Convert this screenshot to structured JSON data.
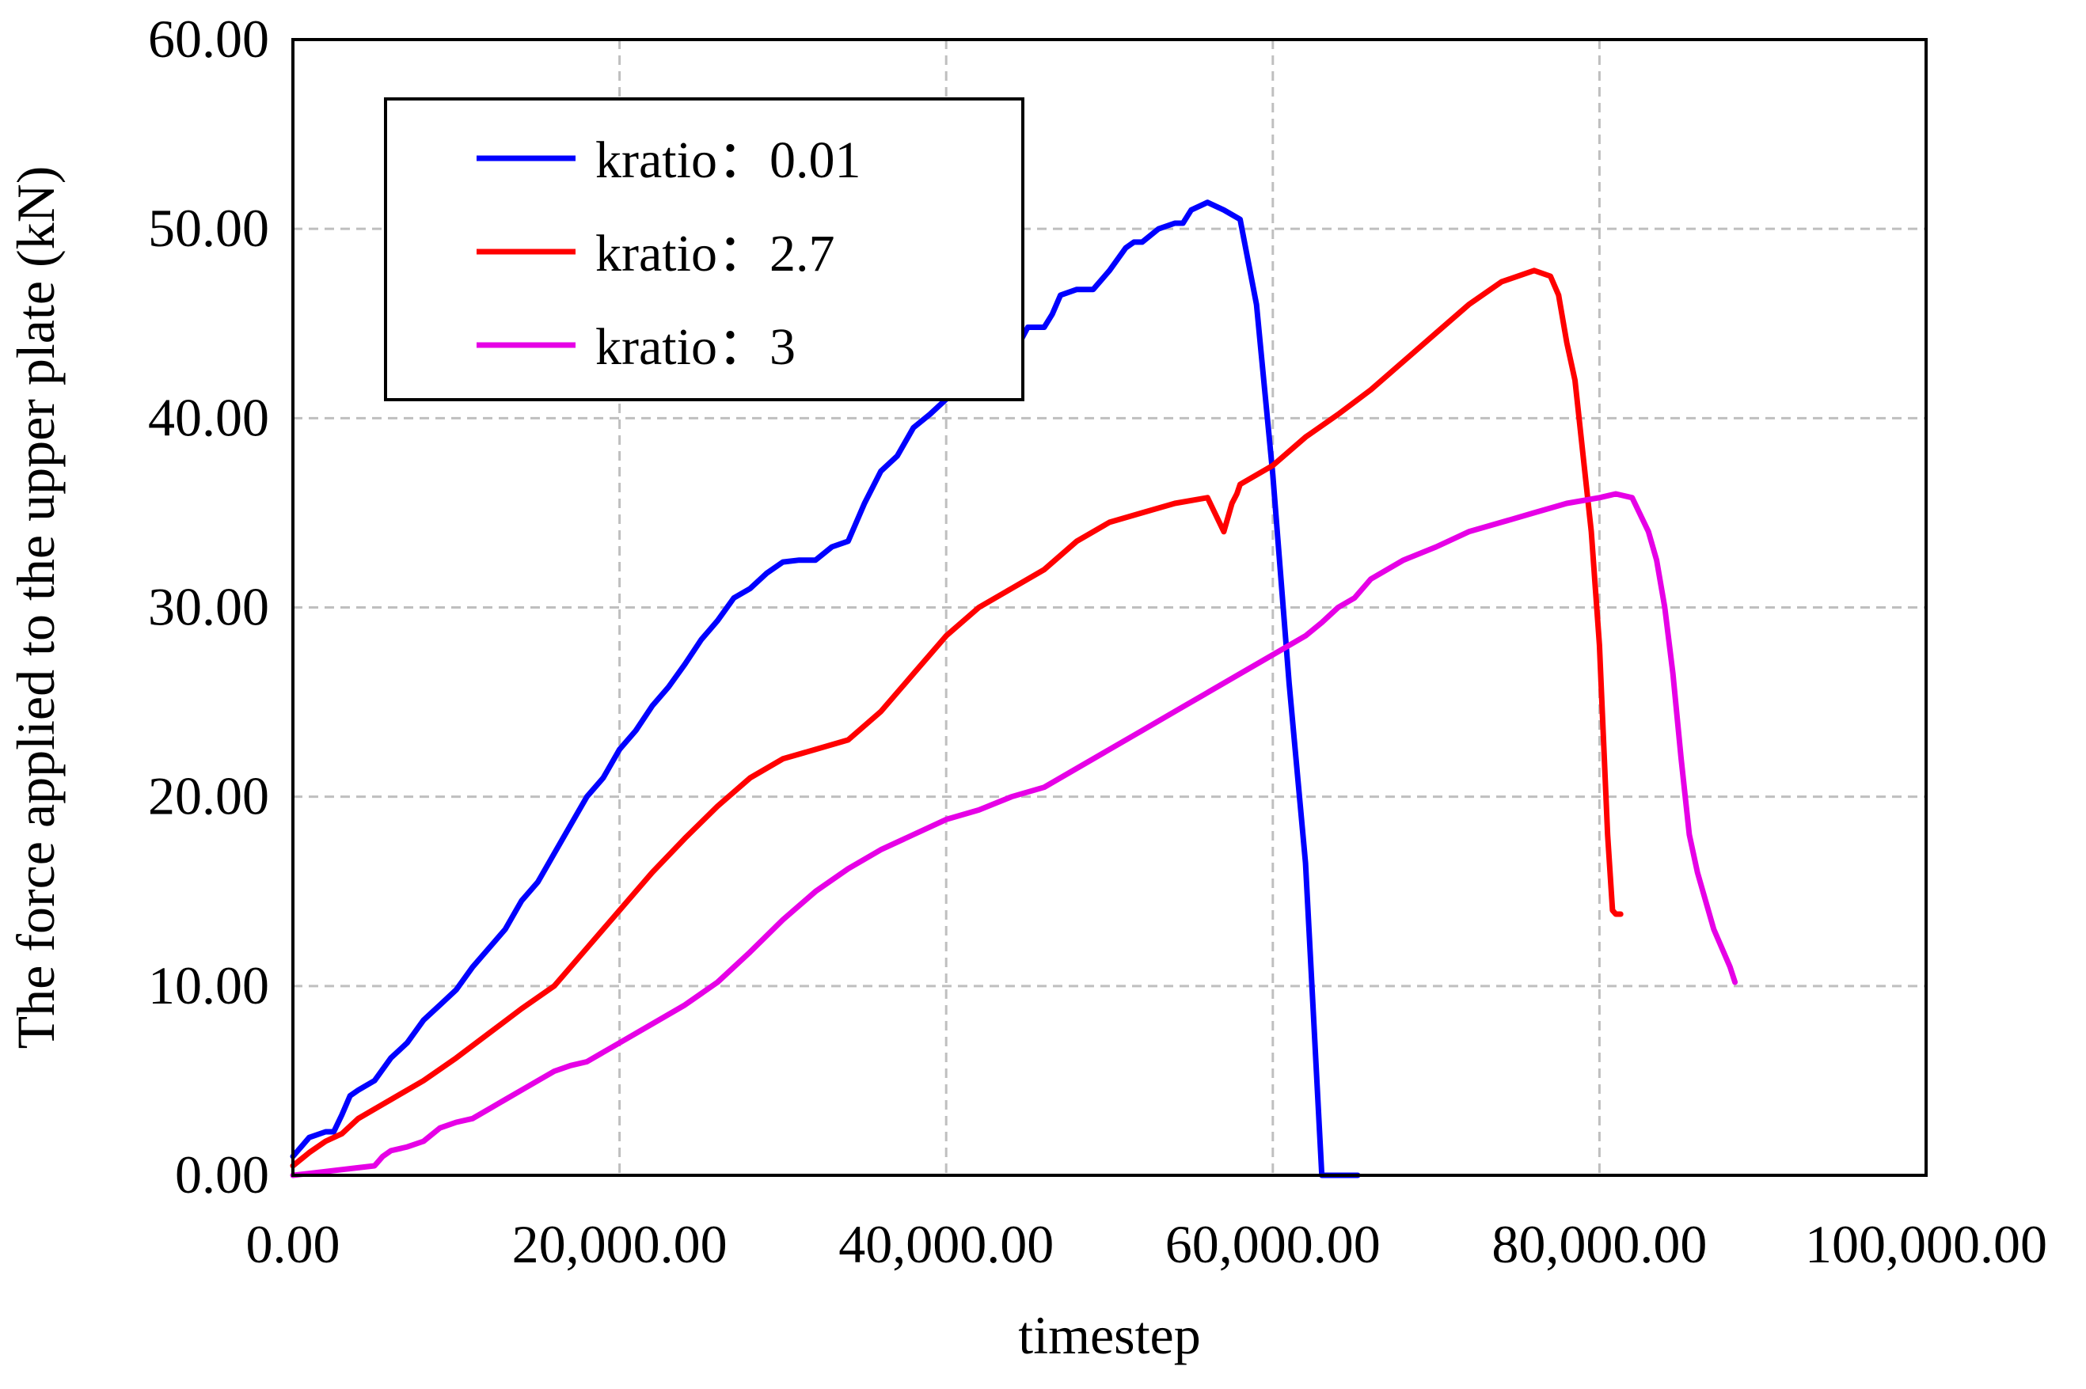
{
  "chart_data": {
    "type": "line",
    "title": "",
    "xlabel": "timestep",
    "ylabel": "The force applied to the upper plate (kN)",
    "xlim": [
      0,
      100000
    ],
    "ylim": [
      0,
      60
    ],
    "xticks": [
      0,
      20000,
      40000,
      60000,
      80000,
      100000
    ],
    "xtick_labels": [
      "0.00",
      "20,000.00",
      "40,000.00",
      "60,000.00",
      "80,000.00",
      "100,000.00"
    ],
    "yticks": [
      0,
      10,
      20,
      30,
      40,
      50,
      60
    ],
    "ytick_labels": [
      "0.00",
      "10.00",
      "20.00",
      "30.00",
      "40.00",
      "50.00",
      "60.00"
    ],
    "grid": true,
    "legend_position": "top-left",
    "series": [
      {
        "name": "kratio：0.01",
        "color": "#0000ff",
        "x": [
          0,
          1000,
          2000,
          2500,
          3000,
          3500,
          4000,
          5000,
          6000,
          7000,
          8000,
          9000,
          10000,
          11000,
          12000,
          13000,
          14000,
          15000,
          16000,
          17000,
          18000,
          19000,
          20000,
          21000,
          22000,
          23000,
          24000,
          25000,
          26000,
          27000,
          28000,
          29000,
          30000,
          31000,
          32000,
          33000,
          34000,
          35000,
          36000,
          37000,
          38000,
          39000,
          40000,
          41000,
          42000,
          43000,
          44000,
          44500,
          45000,
          46000,
          46500,
          47000,
          48000,
          49000,
          50000,
          51000,
          51500,
          52000,
          53000,
          54000,
          54500,
          55000,
          56000,
          57000,
          58000,
          59000,
          60000,
          61000,
          62000,
          62500,
          63000,
          63500,
          64000,
          64300,
          64600,
          64800,
          65000,
          65200
        ],
        "y": [
          1.0,
          2.0,
          2.3,
          2.3,
          3.2,
          4.2,
          4.5,
          5.0,
          6.2,
          7.0,
          8.2,
          9.0,
          9.8,
          11.0,
          12.0,
          13.0,
          14.5,
          15.5,
          17.0,
          18.5,
          20.0,
          21.0,
          22.5,
          23.5,
          24.8,
          25.8,
          27.0,
          28.3,
          29.3,
          30.5,
          31.0,
          31.8,
          32.4,
          32.5,
          32.5,
          33.2,
          33.5,
          35.5,
          37.2,
          38.0,
          39.5,
          40.2,
          41.0,
          42.0,
          42.8,
          43.0,
          43.0,
          44.0,
          44.8,
          44.8,
          45.5,
          46.5,
          46.8,
          46.8,
          47.8,
          49.0,
          49.3,
          49.3,
          50.0,
          50.3,
          50.3,
          51.0,
          51.4,
          51.0,
          50.5,
          46.0,
          37.0,
          26.0,
          16.5,
          0,
          0,
          0,
          0,
          0,
          0,
          0,
          0,
          0
        ]
      },
      {
        "name": "kratio：2.7",
        "color": "#ff0000",
        "x": [
          0,
          1000,
          2000,
          3000,
          4000,
          5000,
          6000,
          8000,
          10000,
          12000,
          14000,
          16000,
          18000,
          20000,
          22000,
          24000,
          26000,
          28000,
          30000,
          32000,
          34000,
          36000,
          38000,
          40000,
          42000,
          44000,
          46000,
          48000,
          50000,
          52000,
          54000,
          56000,
          57000,
          57500,
          57800,
          58000,
          60000,
          62000,
          64000,
          66000,
          68000,
          70000,
          72000,
          74000,
          76000,
          77000,
          77500,
          78000,
          78500,
          79000,
          79500,
          80000,
          80200,
          80500,
          80800,
          81000,
          81300
        ],
        "y": [
          0.5,
          1.2,
          1.8,
          2.2,
          3.0,
          3.5,
          4.0,
          5.0,
          6.2,
          7.5,
          8.8,
          10.0,
          12.0,
          14.0,
          16.0,
          17.8,
          19.5,
          21.0,
          22.0,
          22.5,
          23.0,
          24.5,
          26.5,
          28.5,
          30.0,
          31.0,
          32.0,
          33.5,
          34.5,
          35.0,
          35.5,
          35.8,
          34.0,
          35.5,
          36.0,
          36.5,
          37.5,
          39.0,
          40.2,
          41.5,
          43.0,
          44.5,
          46.0,
          47.2,
          47.8,
          47.5,
          46.5,
          44.0,
          42.0,
          38.0,
          34.0,
          28.0,
          24.0,
          18.0,
          14.0,
          13.8,
          13.8
        ]
      },
      {
        "name": "kratio：3",
        "color": "#e600e6",
        "x": [
          0,
          2000,
          4000,
          5000,
          5500,
          6000,
          7000,
          8000,
          9000,
          10000,
          11000,
          12000,
          13000,
          14000,
          15000,
          16000,
          17000,
          18000,
          19000,
          20000,
          22000,
          24000,
          26000,
          28000,
          30000,
          32000,
          34000,
          36000,
          38000,
          40000,
          42000,
          44000,
          46000,
          48000,
          50000,
          52000,
          54000,
          56000,
          58000,
          60000,
          62000,
          63000,
          64000,
          65000,
          66000,
          68000,
          70000,
          72000,
          74000,
          76000,
          78000,
          80000,
          81000,
          82000,
          83000,
          83500,
          84000,
          84500,
          85000,
          85500,
          86000,
          86500,
          87000,
          87500,
          88000,
          88300
        ],
        "y": [
          0,
          0.2,
          0.4,
          0.5,
          1.0,
          1.3,
          1.5,
          1.8,
          2.5,
          2.8,
          3.0,
          3.5,
          4.0,
          4.5,
          5.0,
          5.5,
          5.8,
          6.0,
          6.5,
          7.0,
          8.0,
          9.0,
          10.2,
          11.8,
          13.5,
          15.0,
          16.2,
          17.2,
          18.0,
          18.8,
          19.3,
          20.0,
          20.5,
          21.5,
          22.5,
          23.5,
          24.5,
          25.5,
          26.5,
          27.5,
          28.5,
          29.2,
          30.0,
          30.5,
          31.5,
          32.5,
          33.2,
          34.0,
          34.5,
          35.0,
          35.5,
          35.8,
          36.0,
          35.8,
          34.0,
          32.5,
          30.0,
          26.5,
          22.0,
          18.0,
          16.0,
          14.5,
          13.0,
          12.0,
          11.0,
          10.2
        ]
      }
    ]
  }
}
